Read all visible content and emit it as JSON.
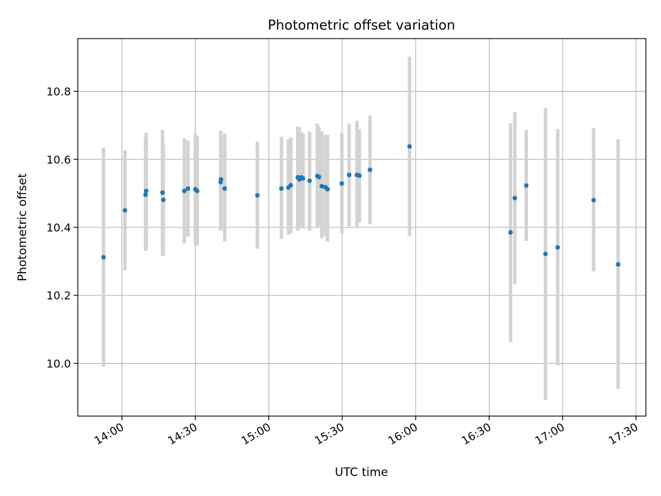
{
  "chart_data": {
    "type": "scatter",
    "title": "Photometric offset variation",
    "xlabel": "UTC time",
    "ylabel": "Photometric offset",
    "xlim": [
      "13:42",
      "17:34"
    ],
    "ylim": [
      9.845,
      10.955
    ],
    "x_ticks": [
      "14:00",
      "14:30",
      "15:00",
      "15:30",
      "16:00",
      "16:30",
      "17:00",
      "17:30"
    ],
    "y_ticks": [
      10.0,
      10.2,
      10.4,
      10.6,
      10.8
    ],
    "y_tick_labels": [
      "10.0",
      "10.2",
      "10.4",
      "10.6",
      "10.8"
    ],
    "grid": true,
    "point_color": "#1f77b4",
    "errorbar_color": "#d3d3d3",
    "series": [
      {
        "points": [
          {
            "x": "13:52:30",
            "y": 10.312,
            "ylow": 9.99,
            "yhigh": 10.634
          },
          {
            "x": "14:01:15",
            "y": 10.45,
            "ylow": 10.273,
            "yhigh": 10.626
          },
          {
            "x": "14:09:40",
            "y": 10.496,
            "ylow": 10.331,
            "yhigh": 10.662
          },
          {
            "x": "14:09:55",
            "y": 10.507,
            "ylow": 10.336,
            "yhigh": 10.678
          },
          {
            "x": "14:16:35",
            "y": 10.502,
            "ylow": 10.317,
            "yhigh": 10.686
          },
          {
            "x": "14:16:55",
            "y": 10.481,
            "ylow": 10.316,
            "yhigh": 10.648
          },
          {
            "x": "14:25:30",
            "y": 10.507,
            "ylow": 10.353,
            "yhigh": 10.662
          },
          {
            "x": "14:27:00",
            "y": 10.514,
            "ylow": 10.373,
            "yhigh": 10.655
          },
          {
            "x": "14:30:00",
            "y": 10.512,
            "ylow": 10.348,
            "yhigh": 10.676
          },
          {
            "x": "14:30:45",
            "y": 10.507,
            "ylow": 10.346,
            "yhigh": 10.668
          },
          {
            "x": "14:40:20",
            "y": 10.533,
            "ylow": 10.39,
            "yhigh": 10.684
          },
          {
            "x": "14:40:30",
            "y": 10.541,
            "ylow": 10.395,
            "yhigh": 10.675
          },
          {
            "x": "14:42:00",
            "y": 10.514,
            "ylow": 10.359,
            "yhigh": 10.675
          },
          {
            "x": "14:55:20",
            "y": 10.494,
            "ylow": 10.337,
            "yhigh": 10.652
          },
          {
            "x": "15:05:10",
            "y": 10.514,
            "ylow": 10.366,
            "yhigh": 10.666
          },
          {
            "x": "15:08:00",
            "y": 10.517,
            "ylow": 10.378,
            "yhigh": 10.658
          },
          {
            "x": "15:09:00",
            "y": 10.524,
            "ylow": 10.383,
            "yhigh": 10.664
          },
          {
            "x": "15:11:50",
            "y": 10.547,
            "ylow": 10.39,
            "yhigh": 10.696
          },
          {
            "x": "15:12:30",
            "y": 10.541,
            "ylow": 10.4,
            "yhigh": 10.694
          },
          {
            "x": "15:13:20",
            "y": 10.547,
            "ylow": 10.41,
            "yhigh": 10.68
          },
          {
            "x": "15:14:00",
            "y": 10.544,
            "ylow": 10.397,
            "yhigh": 10.675
          },
          {
            "x": "15:16:40",
            "y": 10.537,
            "ylow": 10.391,
            "yhigh": 10.682
          },
          {
            "x": "15:19:50",
            "y": 10.551,
            "ylow": 10.4,
            "yhigh": 10.705
          },
          {
            "x": "15:20:30",
            "y": 10.548,
            "ylow": 10.404,
            "yhigh": 10.695
          },
          {
            "x": "15:21:40",
            "y": 10.521,
            "ylow": 10.368,
            "yhigh": 10.682
          },
          {
            "x": "15:23:10",
            "y": 10.518,
            "ylow": 10.375,
            "yhigh": 10.672
          },
          {
            "x": "15:24:00",
            "y": 10.512,
            "ylow": 10.357,
            "yhigh": 10.672
          },
          {
            "x": "15:29:50",
            "y": 10.529,
            "ylow": 10.382,
            "yhigh": 10.678
          },
          {
            "x": "15:32:50",
            "y": 10.554,
            "ylow": 10.404,
            "yhigh": 10.705
          },
          {
            "x": "15:36:00",
            "y": 10.554,
            "ylow": 10.397,
            "yhigh": 10.713
          },
          {
            "x": "15:37:00",
            "y": 10.552,
            "ylow": 10.414,
            "yhigh": 10.689
          },
          {
            "x": "15:41:20",
            "y": 10.569,
            "ylow": 10.409,
            "yhigh": 10.729
          },
          {
            "x": "15:57:30",
            "y": 10.638,
            "ylow": 10.374,
            "yhigh": 10.902
          },
          {
            "x": "16:38:45",
            "y": 10.385,
            "ylow": 10.063,
            "yhigh": 10.706
          },
          {
            "x": "16:40:30",
            "y": 10.486,
            "ylow": 10.233,
            "yhigh": 10.739
          },
          {
            "x": "16:45:10",
            "y": 10.523,
            "ylow": 10.36,
            "yhigh": 10.686
          },
          {
            "x": "16:53:00",
            "y": 10.322,
            "ylow": 9.892,
            "yhigh": 10.751
          },
          {
            "x": "16:58:00",
            "y": 10.341,
            "ylow": 9.994,
            "yhigh": 10.689
          },
          {
            "x": "17:12:40",
            "y": 10.48,
            "ylow": 10.27,
            "yhigh": 10.692
          },
          {
            "x": "17:22:40",
            "y": 10.291,
            "ylow": 9.925,
            "yhigh": 10.659
          }
        ]
      }
    ]
  }
}
